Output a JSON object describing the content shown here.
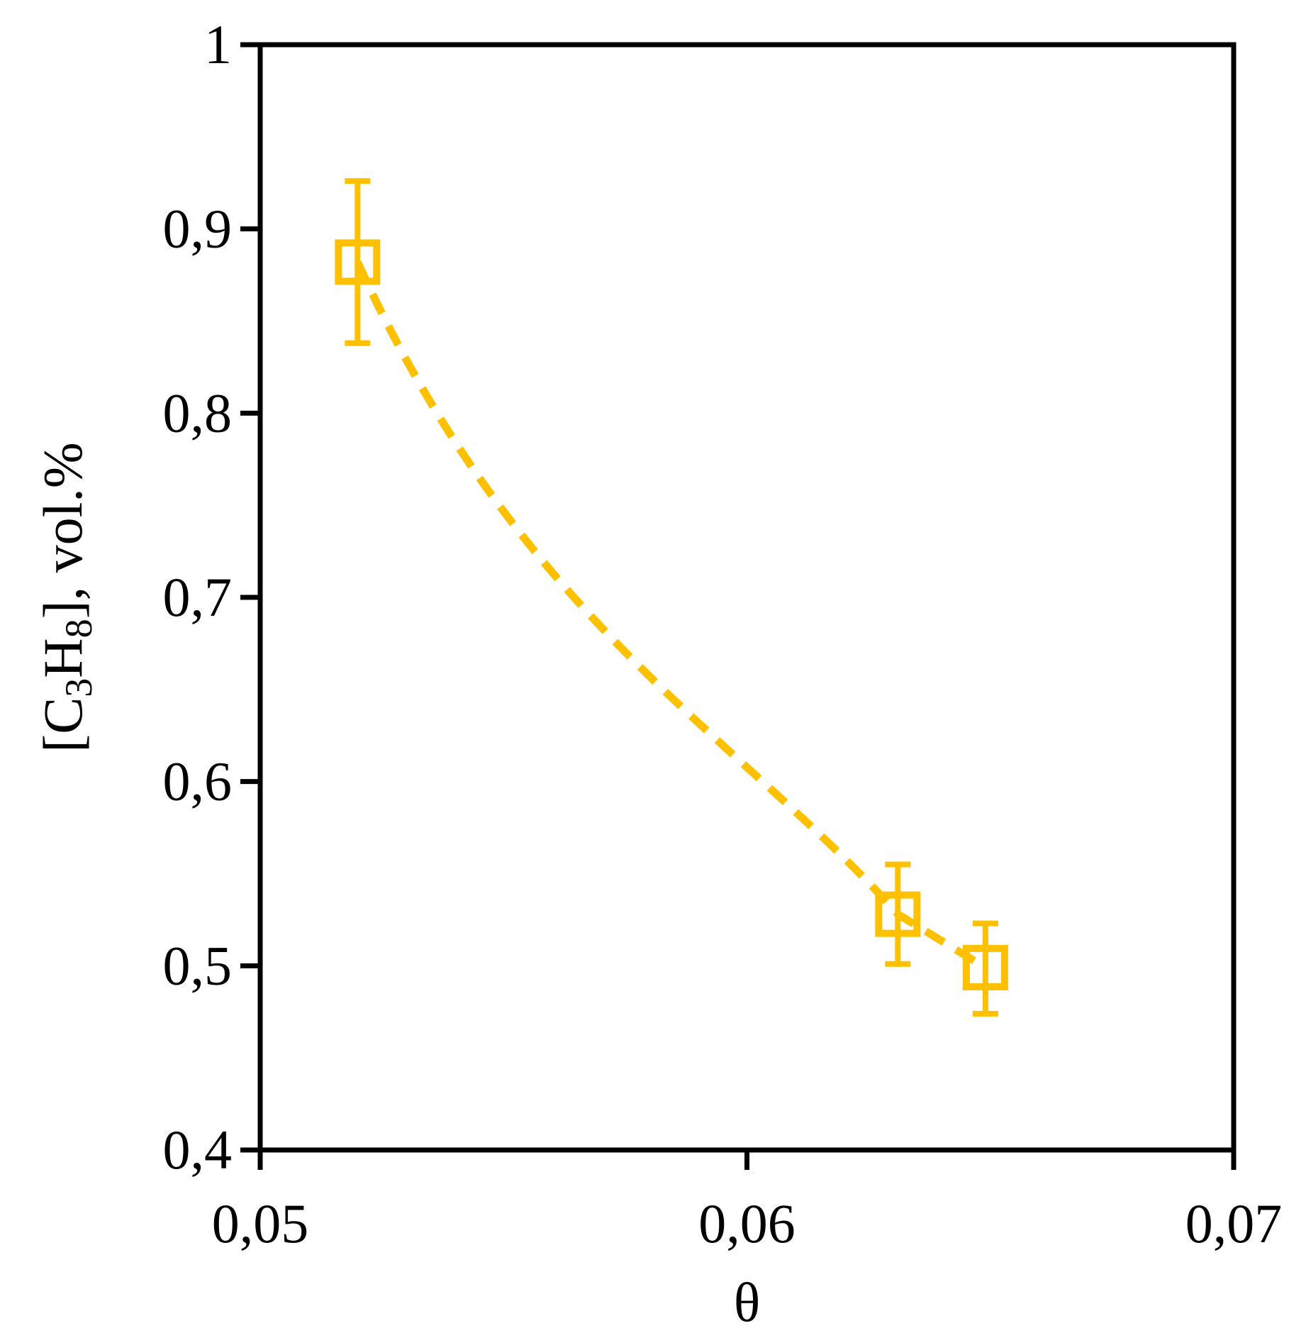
{
  "chart_data": {
    "type": "scatter",
    "title": "",
    "xlabel": "θ",
    "ylabel": {
      "prefix": "[C",
      "sub1": "3",
      "mid": "H",
      "sub2": "8",
      "suffix": "], vol.%"
    },
    "xlim": [
      0.05,
      0.07
    ],
    "ylim": [
      0.4,
      1.0
    ],
    "x_ticks": [
      {
        "value": 0.05,
        "label": "0,05"
      },
      {
        "value": 0.06,
        "label": "0,06"
      },
      {
        "value": 0.07,
        "label": "0,07"
      }
    ],
    "y_ticks": [
      {
        "value": 0.4,
        "label": "0,4"
      },
      {
        "value": 0.5,
        "label": "0,5"
      },
      {
        "value": 0.6,
        "label": "0,6"
      },
      {
        "value": 0.7,
        "label": "0,7"
      },
      {
        "value": 0.8,
        "label": "0,8"
      },
      {
        "value": 0.9,
        "label": "0,9"
      },
      {
        "value": 1.0,
        "label": "1"
      }
    ],
    "grid": false,
    "legend": "none",
    "series": [
      {
        "color": "#FFC000",
        "marker": "open-square",
        "points": [
          {
            "x": 0.052,
            "y": 0.882,
            "err_low": 0.838,
            "err_high": 0.926
          },
          {
            "x": 0.0631,
            "y": 0.528,
            "err_low": 0.501,
            "err_high": 0.555
          },
          {
            "x": 0.0649,
            "y": 0.499,
            "err_low": 0.474,
            "err_high": 0.523
          }
        ],
        "trendline": {
          "style": "dashed",
          "type": "smooth"
        }
      }
    ]
  }
}
